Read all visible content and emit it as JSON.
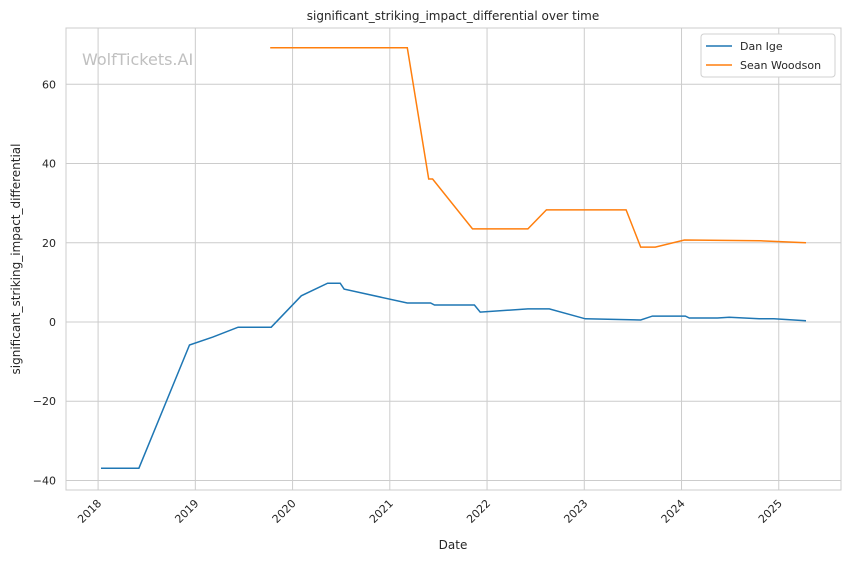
{
  "chart_data": {
    "type": "line",
    "title": "significant_striking_impact_differential over time",
    "xlabel": "Date",
    "ylabel": "significant_striking_impact_differential",
    "watermark": "WolfTickets.AI",
    "xlim": [
      2017.67,
      2025.64
    ],
    "ylim": [
      -42.4,
      74.2
    ],
    "x_ticks": [
      2018,
      2019,
      2020,
      2021,
      2022,
      2023,
      2024,
      2025
    ],
    "x_tick_labels": [
      "2018",
      "2019",
      "2020",
      "2021",
      "2022",
      "2023",
      "2024",
      "2025"
    ],
    "y_ticks": [
      -40,
      -20,
      0,
      20,
      40,
      60
    ],
    "y_tick_labels": [
      "−40",
      "−20",
      "0",
      "20",
      "40",
      "60"
    ],
    "grid": true,
    "legend_position": "top-right",
    "series": [
      {
        "name": "Dan Ige",
        "color": "#1f77b4",
        "x": [
          2018.03,
          2018.42,
          2018.94,
          2019.18,
          2019.44,
          2019.78,
          2020.09,
          2020.36,
          2020.49,
          2020.53,
          2021.18,
          2021.42,
          2021.46,
          2021.87,
          2021.93,
          2022.42,
          2022.64,
          2023.01,
          2023.58,
          2023.7,
          2024.04,
          2024.08,
          2024.37,
          2024.49,
          2024.8,
          2024.95,
          2025.28
        ],
        "y": [
          -36.9,
          -36.9,
          -5.8,
          -3.8,
          -1.3,
          -1.3,
          6.6,
          9.8,
          9.8,
          8.3,
          4.8,
          4.8,
          4.3,
          4.3,
          2.5,
          3.3,
          3.3,
          0.8,
          0.5,
          1.5,
          1.5,
          1.0,
          1.0,
          1.2,
          0.8,
          0.8,
          0.3
        ]
      },
      {
        "name": "Sean Woodson",
        "color": "#ff7f0e",
        "x": [
          2019.77,
          2021.18,
          2021.4,
          2021.44,
          2021.85,
          2022.42,
          2022.61,
          2023.43,
          2023.58,
          2023.73,
          2024.03,
          2024.81,
          2025.28
        ],
        "y": [
          69.2,
          69.2,
          36.1,
          36.1,
          23.5,
          23.5,
          28.3,
          28.3,
          18.9,
          18.9,
          20.7,
          20.5,
          20.0
        ]
      }
    ]
  }
}
